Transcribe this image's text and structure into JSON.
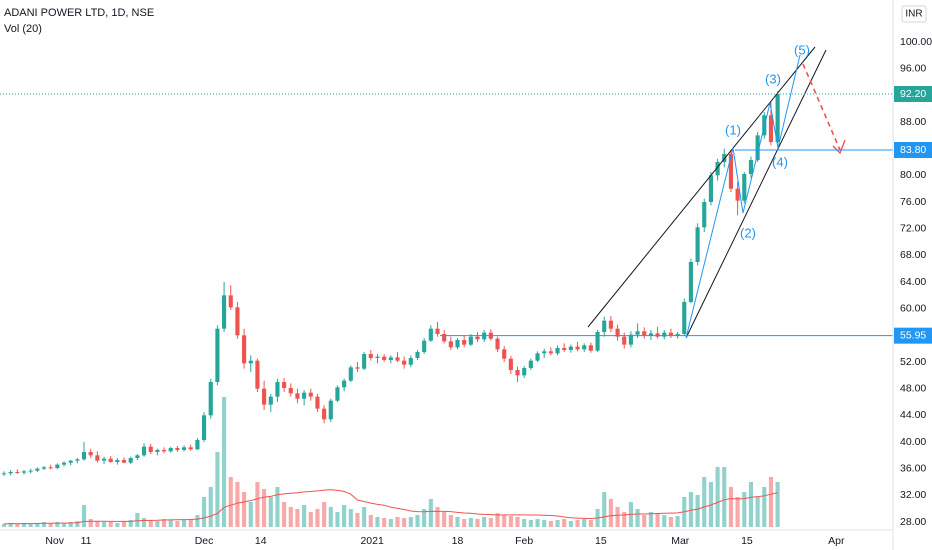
{
  "chart_data": {
    "type": "candlestick",
    "title": "ADANI POWER LTD, 1D, NSE",
    "volume_title": "Vol (20)",
    "volume_ma_period": 20,
    "currency": "INR",
    "up_color": "#26a69a",
    "down_color": "#ef5350",
    "grid": true,
    "xlim": [
      -0.6,
      133.3
    ],
    "ylim": [
      26.8,
      106.3
    ],
    "volume_lim": [
      0,
      150
    ],
    "xticks": [
      {
        "value": 7.6,
        "label": "Nov"
      },
      {
        "value": 12.3,
        "label": "11"
      },
      {
        "value": 30,
        "label": "Dec"
      },
      {
        "value": 38.5,
        "label": "14"
      },
      {
        "value": 55.2,
        "label": "2021"
      },
      {
        "value": 68,
        "label": "18"
      },
      {
        "value": 78,
        "label": "Feb"
      },
      {
        "value": 89.5,
        "label": "15"
      },
      {
        "value": 101.4,
        "label": "Mar"
      },
      {
        "value": 111.4,
        "label": "15"
      },
      {
        "value": 124.8,
        "label": "Apr"
      }
    ],
    "yticks": [
      {
        "value": 28,
        "label": "28.00"
      },
      {
        "value": 32,
        "label": "32.00"
      },
      {
        "value": 36,
        "label": "36.00"
      },
      {
        "value": 40,
        "label": "40.00"
      },
      {
        "value": 44,
        "label": "44.00"
      },
      {
        "value": 48,
        "label": "48.00"
      },
      {
        "value": 52,
        "label": "52.00"
      },
      {
        "value": 56,
        "label": "56.00"
      },
      {
        "value": 60,
        "label": "60.00"
      },
      {
        "value": 64,
        "label": "64.00"
      },
      {
        "value": 68,
        "label": "68.00"
      },
      {
        "value": 72,
        "label": "72.00"
      },
      {
        "value": 76,
        "label": "76.00"
      },
      {
        "value": 80,
        "label": "80.00"
      },
      {
        "value": 84,
        "label": "84.00"
      },
      {
        "value": 88,
        "label": "88.00"
      },
      {
        "value": 92,
        "label": "92.00"
      },
      {
        "value": 96,
        "label": "96.00"
      },
      {
        "value": 100,
        "label": "100.00"
      }
    ],
    "last_price": {
      "value": 92.2,
      "label": "92.20"
    },
    "levels": [
      {
        "value": 55.95,
        "label": "55.95"
      },
      {
        "value": 83.8,
        "label": "83.80"
      }
    ],
    "wave_labels": [
      "(1)",
      "(2)",
      "(3)",
      "(4)",
      "(5)"
    ],
    "ohlc": [
      [
        35.2,
        35.6,
        34.9,
        35.3
      ],
      [
        35.3,
        35.8,
        35.0,
        35.5
      ],
      [
        35.5,
        35.9,
        35.2,
        35.4
      ],
      [
        35.4,
        35.8,
        35.1,
        35.6
      ],
      [
        35.6,
        36.0,
        35.3,
        35.7
      ],
      [
        35.7,
        36.2,
        35.5,
        36.0
      ],
      [
        36.0,
        36.4,
        35.8,
        36.2
      ],
      [
        36.2,
        36.6,
        35.9,
        36.1
      ],
      [
        36.1,
        36.8,
        35.9,
        36.6
      ],
      [
        36.6,
        37.1,
        36.3,
        36.9
      ],
      [
        36.9,
        37.3,
        36.5,
        37.2
      ],
      [
        37.2,
        37.6,
        36.8,
        37.4
      ],
      [
        37.4,
        40.0,
        37.2,
        38.5
      ],
      [
        38.5,
        39.0,
        37.6,
        38.0
      ],
      [
        38.0,
        38.6,
        36.9,
        37.2
      ],
      [
        37.2,
        37.8,
        36.7,
        37.5
      ],
      [
        37.5,
        37.9,
        36.9,
        37.0
      ],
      [
        37.0,
        37.6,
        36.6,
        37.3
      ],
      [
        37.3,
        37.7,
        36.8,
        36.9
      ],
      [
        36.9,
        37.8,
        36.7,
        37.6
      ],
      [
        37.6,
        38.2,
        37.3,
        38.0
      ],
      [
        38.0,
        39.8,
        37.8,
        39.3
      ],
      [
        39.3,
        39.7,
        38.2,
        38.5
      ],
      [
        38.5,
        39.0,
        38.0,
        38.8
      ],
      [
        38.8,
        39.2,
        38.3,
        38.6
      ],
      [
        38.6,
        39.3,
        38.4,
        39.1
      ],
      [
        39.1,
        39.4,
        38.5,
        38.8
      ],
      [
        38.8,
        39.5,
        38.6,
        39.2
      ],
      [
        39.2,
        39.6,
        38.7,
        38.9
      ],
      [
        38.9,
        40.6,
        38.8,
        40.3
      ],
      [
        40.3,
        44.5,
        40.0,
        44.0
      ],
      [
        44.0,
        49.5,
        43.5,
        49.0
      ],
      [
        49.0,
        57.5,
        48.5,
        57.0
      ],
      [
        57.0,
        64.0,
        56.5,
        62.0
      ],
      [
        62.0,
        63.5,
        59.8,
        60.2
      ],
      [
        60.2,
        61.0,
        55.5,
        56.0
      ],
      [
        56.0,
        57.0,
        51.0,
        51.8
      ],
      [
        51.8,
        53.0,
        50.5,
        52.2
      ],
      [
        52.2,
        52.5,
        47.5,
        48.0
      ],
      [
        48.0,
        49.2,
        44.8,
        45.6
      ],
      [
        45.6,
        47.2,
        44.5,
        46.8
      ],
      [
        46.8,
        49.5,
        46.0,
        49.0
      ],
      [
        49.0,
        49.6,
        47.5,
        48.1
      ],
      [
        48.1,
        48.8,
        46.8,
        47.3
      ],
      [
        47.3,
        48.0,
        45.8,
        46.5
      ],
      [
        46.5,
        47.8,
        45.5,
        47.4
      ],
      [
        47.4,
        48.0,
        46.2,
        46.8
      ],
      [
        46.8,
        47.2,
        44.5,
        45.0
      ],
      [
        45.0,
        45.5,
        42.8,
        43.4
      ],
      [
        43.4,
        46.5,
        43.0,
        46.2
      ],
      [
        46.2,
        48.5,
        46.0,
        48.2
      ],
      [
        48.2,
        49.5,
        47.6,
        49.2
      ],
      [
        49.2,
        51.5,
        49.0,
        51.2
      ],
      [
        51.2,
        52.0,
        50.5,
        51.0
      ],
      [
        51.0,
        53.5,
        50.8,
        53.2
      ],
      [
        53.2,
        53.8,
        52.2,
        52.6
      ],
      [
        52.6,
        53.2,
        51.8,
        52.8
      ],
      [
        52.8,
        53.2,
        52.0,
        52.3
      ],
      [
        52.3,
        53.0,
        51.8,
        52.7
      ],
      [
        52.7,
        53.5,
        52.0,
        52.2
      ],
      [
        52.2,
        52.8,
        51.0,
        51.6
      ],
      [
        51.6,
        53.0,
        51.2,
        52.6
      ],
      [
        52.6,
        53.8,
        52.3,
        53.5
      ],
      [
        53.5,
        55.6,
        53.2,
        55.2
      ],
      [
        55.2,
        57.5,
        55.0,
        57.0
      ],
      [
        57.0,
        58.0,
        55.8,
        56.2
      ],
      [
        56.2,
        56.8,
        54.8,
        55.1
      ],
      [
        55.1,
        55.8,
        53.8,
        54.2
      ],
      [
        54.2,
        55.6,
        53.9,
        55.3
      ],
      [
        55.3,
        56.0,
        54.2,
        54.6
      ],
      [
        54.6,
        56.2,
        54.4,
        55.8
      ],
      [
        55.8,
        56.5,
        55.0,
        55.4
      ],
      [
        55.4,
        56.8,
        55.0,
        56.4
      ],
      [
        56.4,
        56.9,
        55.2,
        55.5
      ],
      [
        55.5,
        55.8,
        53.5,
        53.9
      ],
      [
        53.9,
        54.4,
        52.0,
        52.5
      ],
      [
        52.5,
        52.9,
        50.2,
        50.8
      ],
      [
        50.8,
        51.3,
        49.0,
        50.0
      ],
      [
        50.0,
        51.4,
        49.6,
        51.1
      ],
      [
        51.1,
        52.5,
        50.8,
        52.2
      ],
      [
        52.2,
        53.6,
        52.0,
        53.3
      ],
      [
        53.3,
        54.0,
        52.6,
        53.6
      ],
      [
        53.6,
        54.2,
        53.0,
        53.3
      ],
      [
        53.3,
        54.5,
        53.0,
        54.1
      ],
      [
        54.1,
        54.8,
        53.5,
        53.8
      ],
      [
        53.8,
        54.6,
        53.4,
        54.3
      ],
      [
        54.3,
        55.0,
        53.6,
        53.9
      ],
      [
        53.9,
        54.8,
        53.5,
        54.5
      ],
      [
        54.5,
        54.9,
        53.4,
        53.7
      ],
      [
        53.7,
        56.8,
        53.5,
        56.5
      ],
      [
        56.5,
        58.8,
        55.8,
        58.2
      ],
      [
        58.2,
        58.9,
        56.5,
        57.0
      ],
      [
        57.0,
        57.6,
        55.2,
        55.8
      ],
      [
        55.8,
        56.4,
        54.0,
        54.6
      ],
      [
        54.6,
        56.6,
        54.2,
        56.1
      ],
      [
        56.1,
        57.8,
        55.6,
        56.6
      ],
      [
        56.6,
        57.2,
        55.5,
        55.9
      ],
      [
        55.9,
        56.8,
        55.3,
        56.3
      ],
      [
        56.3,
        57.3,
        55.5,
        55.8
      ],
      [
        55.8,
        56.8,
        55.4,
        56.4
      ],
      [
        56.4,
        57.0,
        55.6,
        55.9
      ],
      [
        55.9,
        56.5,
        55.5,
        56.2
      ],
      [
        56.2,
        61.5,
        56.0,
        61.0
      ],
      [
        61.0,
        67.5,
        60.8,
        67.0
      ],
      [
        67.0,
        72.8,
        66.5,
        72.2
      ],
      [
        72.2,
        76.5,
        71.5,
        76.0
      ],
      [
        76.0,
        80.5,
        75.5,
        80.0
      ],
      [
        80.0,
        82.5,
        79.2,
        82.0
      ],
      [
        82.0,
        84.0,
        81.2,
        83.2
      ],
      [
        83.2,
        83.8,
        77.5,
        78.0
      ],
      [
        78.0,
        79.0,
        74.0,
        76.2
      ],
      [
        76.2,
        80.5,
        75.8,
        80.2
      ],
      [
        80.2,
        82.8,
        79.6,
        82.3
      ],
      [
        82.3,
        86.5,
        82.0,
        86.0
      ],
      [
        86.0,
        89.5,
        85.5,
        89.0
      ],
      [
        89.0,
        91.0,
        84.5,
        85.0
      ],
      [
        85.0,
        92.6,
        84.8,
        92.2
      ]
    ],
    "volume": [
      3,
      4,
      3,
      4,
      3,
      4,
      5,
      4,
      5,
      4,
      5,
      6,
      22,
      8,
      6,
      5,
      5,
      4,
      6,
      7,
      14,
      9,
      7,
      6,
      8,
      7,
      6,
      7,
      8,
      12,
      30,
      40,
      75,
      130,
      50,
      45,
      35,
      25,
      45,
      38,
      30,
      40,
      25,
      20,
      18,
      22,
      15,
      18,
      25,
      20,
      15,
      22,
      18,
      14,
      20,
      12,
      10,
      9,
      8,
      10,
      9,
      10,
      12,
      18,
      28,
      20,
      15,
      12,
      10,
      8,
      9,
      8,
      10,
      9,
      14,
      12,
      11,
      10,
      8,
      7,
      8,
      7,
      6,
      7,
      8,
      6,
      7,
      8,
      7,
      18,
      35,
      28,
      20,
      15,
      25,
      18,
      12,
      15,
      14,
      12,
      10,
      11,
      30,
      35,
      32,
      50,
      45,
      60,
      60,
      40,
      30,
      35,
      45,
      30,
      40,
      50,
      45
    ]
  }
}
